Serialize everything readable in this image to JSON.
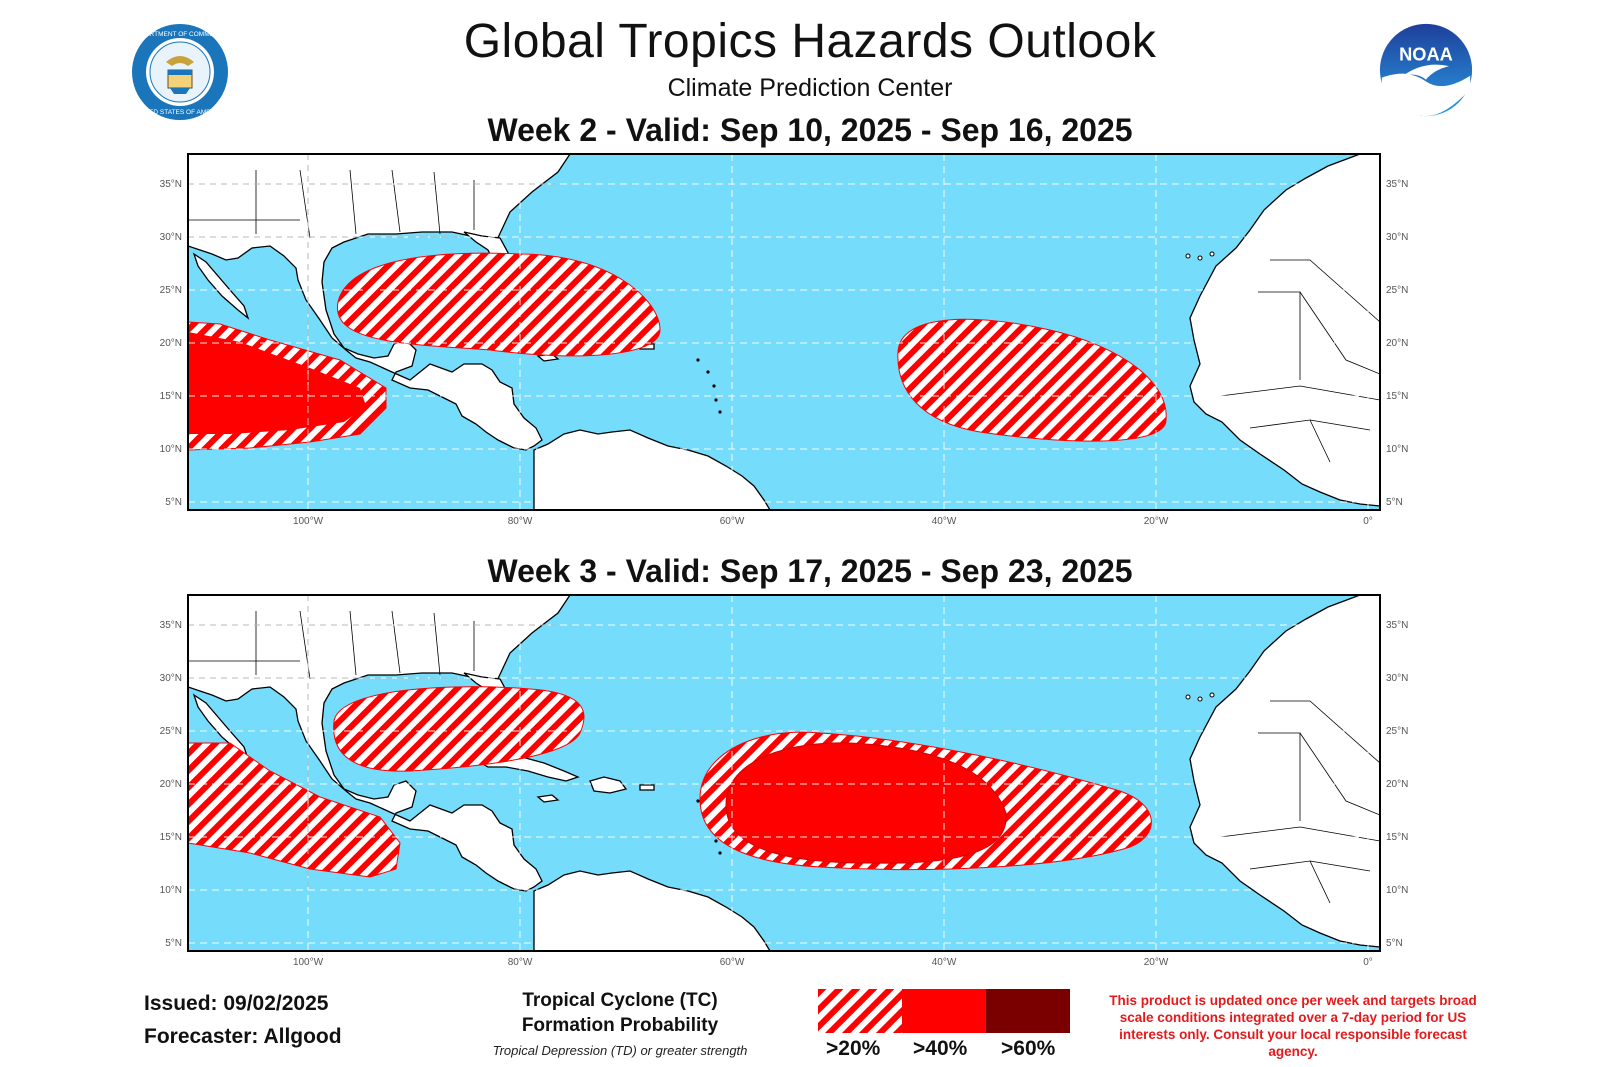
{
  "header": {
    "title": "Global Tropics Hazards Outlook",
    "subtitle": "Climate Prediction Center"
  },
  "logos": {
    "left": {
      "icon": "department-of-commerce-seal",
      "text": "DEPARTMENT OF COMMERCE · UNITED STATES OF AMERICA"
    },
    "right": {
      "icon": "noaa-logo",
      "text": "NOAA"
    }
  },
  "maps": {
    "week2": {
      "title": "Week 2 - Valid: Sep 10, 2025 - Sep 16, 2025"
    },
    "week3": {
      "title": "Week 3 - Valid: Sep 17, 2025 - Sep 23, 2025"
    },
    "lat_labels": [
      "35°N",
      "30°N",
      "25°N",
      "20°N",
      "15°N",
      "10°N",
      "5°N"
    ],
    "lon_labels": [
      "100°W",
      "80°W",
      "60°W",
      "40°W",
      "20°W",
      "0°"
    ]
  },
  "footer": {
    "issued": "Issued: 09/02/2025",
    "forecaster": "Forecaster: Allgood"
  },
  "legend": {
    "title_line1": "Tropical Cyclone (TC)",
    "title_line2": "Formation Probability",
    "note": "Tropical Depression (TD) or greater strength",
    "categories": [
      {
        "label": ">20%",
        "color": "#ff0000",
        "style": "hatched"
      },
      {
        "label": ">40%",
        "color": "#ff0000",
        "style": "solid"
      },
      {
        "label": ">60%",
        "color": "#7a0000",
        "style": "solid"
      }
    ]
  },
  "disclaimer": "This product is updated once per week and targets broad scale conditions integrated over a 7-day period for US interests only. Consult your local responsible forecast agency.",
  "colors": {
    "ocean": "#75dcfb",
    "land": "#ffffff",
    "hazard": "#ff0000",
    "hazard_dark": "#7a0000",
    "disclaimer": "#e41a1c"
  }
}
